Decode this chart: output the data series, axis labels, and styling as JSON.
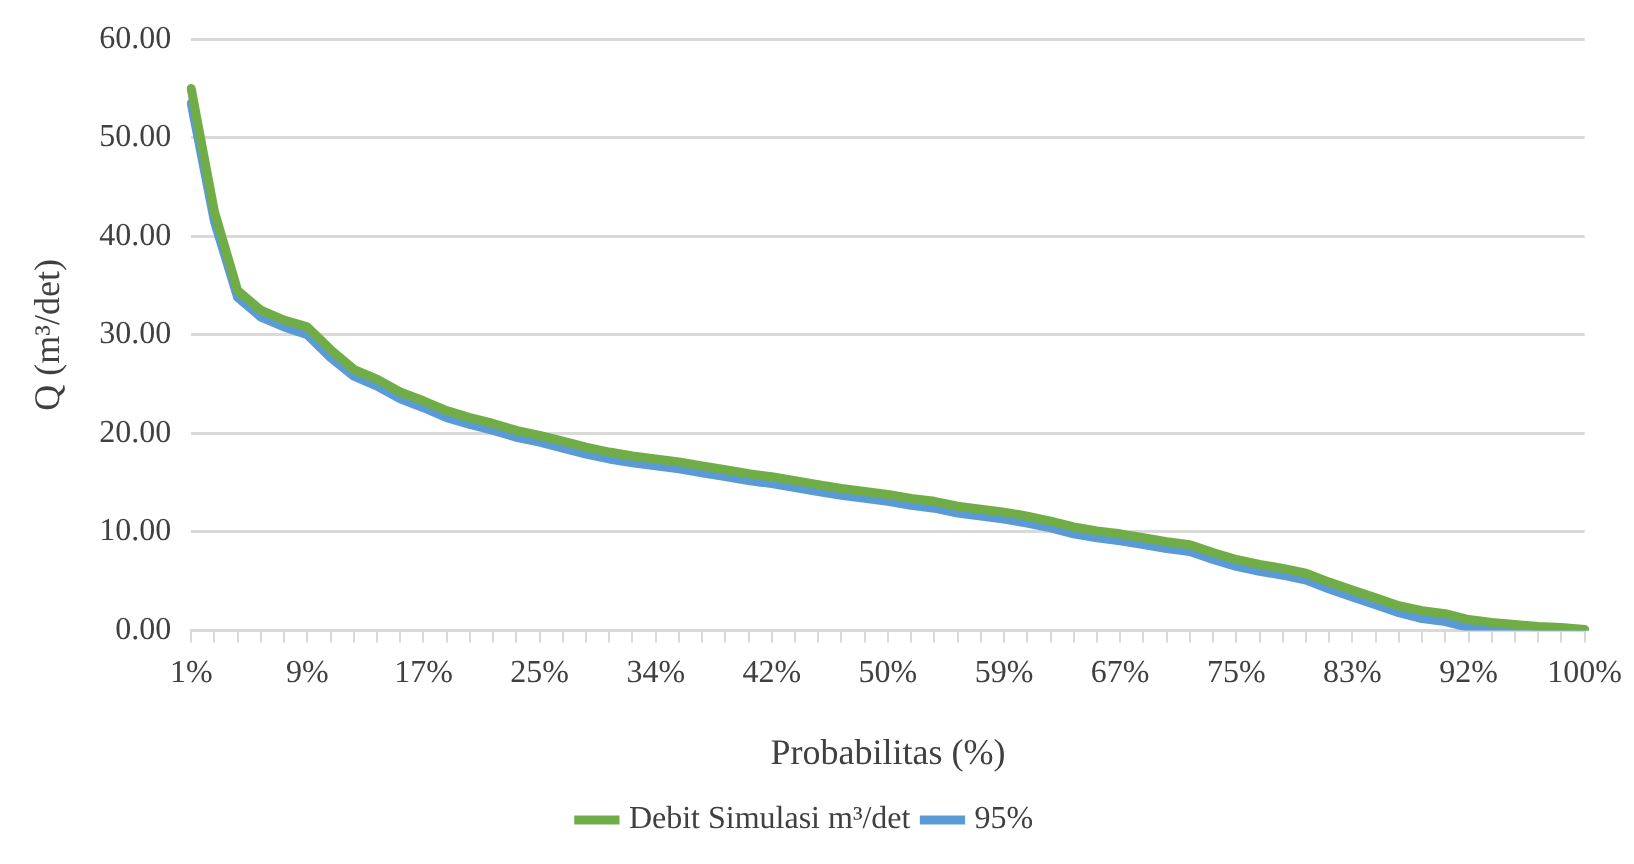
{
  "chart_data": {
    "type": "line",
    "xlabel": "Probabilitas (%)",
    "ylabel": "Q (m³/det)",
    "categories": [
      "1%",
      null,
      null,
      null,
      null,
      "9%",
      null,
      null,
      null,
      null,
      "17%",
      null,
      null,
      null,
      null,
      "25%",
      null,
      null,
      null,
      null,
      "34%",
      null,
      null,
      null,
      null,
      "42%",
      null,
      null,
      null,
      null,
      "50%",
      null,
      null,
      null,
      null,
      "59%",
      null,
      null,
      null,
      null,
      "67%",
      null,
      null,
      null,
      null,
      "75%",
      null,
      null,
      null,
      null,
      "83%",
      null,
      null,
      null,
      null,
      "92%",
      null,
      null,
      null,
      null,
      "100%"
    ],
    "series": [
      {
        "name": "Debit Simulasi m³/det",
        "color": "#70ad47",
        "values": [
          55,
          42.5,
          34.5,
          32.5,
          31.5,
          30.8,
          28.5,
          26.5,
          25.5,
          24.2,
          23.3,
          22.3,
          21.6,
          21,
          20.3,
          19.8,
          19.2,
          18.6,
          18.1,
          17.7,
          17.4,
          17.1,
          16.7,
          16.3,
          15.9,
          15.6,
          15.2,
          14.8,
          14.4,
          14.1,
          13.8,
          13.4,
          13.1,
          12.6,
          12.3,
          12,
          11.6,
          11.1,
          10.5,
          10.1,
          9.8,
          9.4,
          9,
          8.7,
          7.9,
          7.2,
          6.7,
          6.3,
          5.8,
          4.9,
          4.1,
          3.3,
          2.5,
          2,
          1.7,
          1.1,
          0.8,
          0.6,
          0.4,
          0.3,
          0.1
        ]
      },
      {
        "name": "95%",
        "color": "#5b9bd5",
        "values": [
          53.5,
          41.5,
          33.8,
          31.8,
          30.8,
          30,
          27.7,
          25.8,
          24.8,
          23.5,
          22.6,
          21.6,
          20.9,
          20.3,
          19.6,
          19.1,
          18.5,
          17.9,
          17.4,
          17,
          16.7,
          16.4,
          16,
          15.6,
          15.2,
          14.9,
          14.5,
          14.1,
          13.7,
          13.4,
          13.1,
          12.7,
          12.4,
          11.9,
          11.6,
          11.3,
          10.9,
          10.4,
          9.8,
          9.4,
          9.1,
          8.7,
          8.3,
          8,
          7.2,
          6.5,
          6,
          5.6,
          5.1,
          4.2,
          3.4,
          2.6,
          1.8,
          1.2,
          0.9,
          0.3,
          0,
          0,
          0,
          0,
          0
        ]
      }
    ],
    "ylim": [
      0,
      60
    ],
    "yticks": [
      {
        "value": 0,
        "label": "0.00"
      },
      {
        "value": 10,
        "label": "10.00"
      },
      {
        "value": 20,
        "label": "20.00"
      },
      {
        "value": 30,
        "label": "30.00"
      },
      {
        "value": 40,
        "label": "40.00"
      },
      {
        "value": 50,
        "label": "50.00"
      },
      {
        "value": 60,
        "label": "60.00"
      }
    ],
    "grid": "y",
    "legend": "bottom",
    "marker": "none",
    "line_style": "solid"
  }
}
